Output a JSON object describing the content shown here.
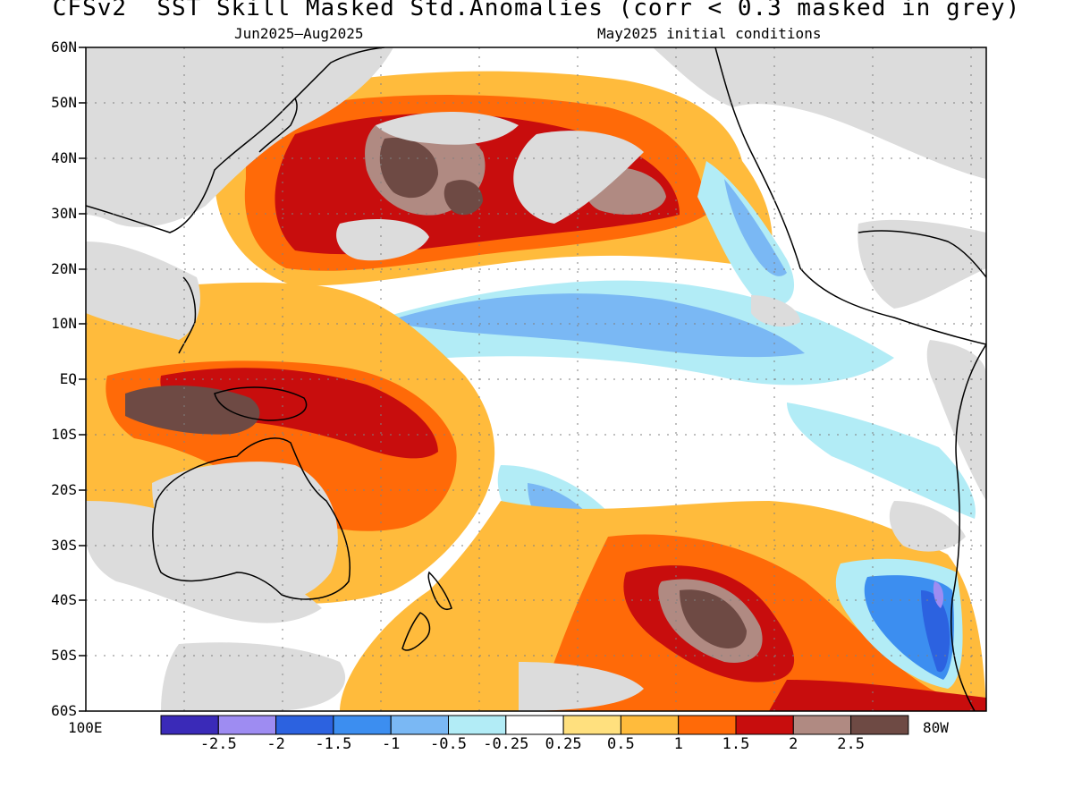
{
  "title": "CFSv2  SST Skill Masked Std.Anomalies (corr < 0.3 masked in grey)",
  "subtitle_left": "Jun2025—Aug2025",
  "subtitle_right": "May2025 initial conditions",
  "lat_labels": [
    "60N",
    "50N",
    "40N",
    "30N",
    "20N",
    "10N",
    "EQ",
    "10S",
    "20S",
    "30S",
    "40S",
    "50S",
    "60S"
  ],
  "lon_labels": {
    "left": "100E",
    "right": "80W"
  },
  "colorbar": {
    "colors": [
      "#3a2ab8",
      "#9e8cf2",
      "#2c62e0",
      "#3c8ef0",
      "#7ab8f4",
      "#b2ecf6",
      "#ffffff",
      "#ffe07e",
      "#ffbb3c",
      "#ff6a08",
      "#c80d0d",
      "#b08a82",
      "#6e4a44"
    ],
    "labels": [
      "-2.5",
      "-2",
      "-1.5",
      "-1",
      "-0.5",
      "-0.25",
      "0.25",
      "0.5",
      "1",
      "1.5",
      "2",
      "2.5"
    ]
  },
  "mask_color": "#dcdcdc",
  "land_color": "#dcdcdc"
}
